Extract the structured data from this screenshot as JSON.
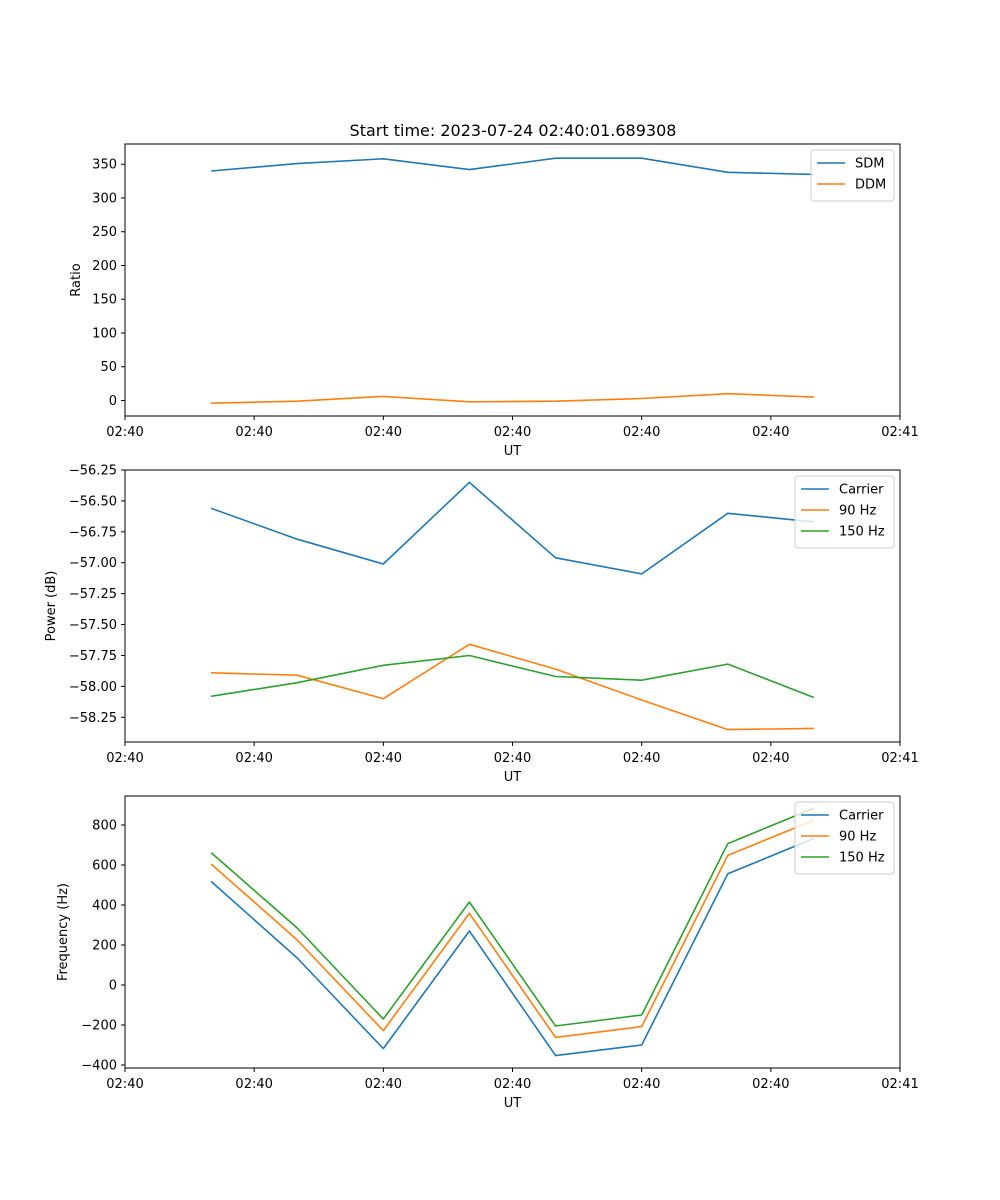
{
  "figure": {
    "title": "Start time: 2023-07-24 02:40:01.689308"
  },
  "chart_data": [
    {
      "type": "line",
      "title": "Start time: 2023-07-24 02:40:01.689308",
      "xlabel": "UT",
      "ylabel": "Ratio",
      "x_index": [
        1,
        2,
        3,
        4,
        5,
        6,
        7,
        8
      ],
      "xlim": [
        0,
        9
      ],
      "x_ticks": [
        {
          "pos": 0,
          "label": "02:40"
        },
        {
          "pos": 1.5,
          "label": "02:40"
        },
        {
          "pos": 3,
          "label": "02:40"
        },
        {
          "pos": 4.5,
          "label": "02:40"
        },
        {
          "pos": 6,
          "label": "02:40"
        },
        {
          "pos": 7.5,
          "label": "02:40"
        },
        {
          "pos": 9,
          "label": "02:41"
        }
      ],
      "ylim": [
        -23,
        380
      ],
      "y_ticks": [
        0,
        50,
        100,
        150,
        200,
        250,
        300,
        350
      ],
      "y_tick_labels": [
        "0",
        "50",
        "100",
        "150",
        "200",
        "250",
        "300",
        "350"
      ],
      "legend_position": "top-right",
      "series": [
        {
          "name": "SDM",
          "color": "#1f77b4",
          "values": [
            340,
            351,
            358,
            342,
            359,
            359,
            338,
            335
          ]
        },
        {
          "name": "DDM",
          "color": "#ff7f0e",
          "values": [
            -4,
            -1,
            6,
            -2,
            -1,
            3,
            10,
            5
          ]
        }
      ]
    },
    {
      "type": "line",
      "title": "",
      "xlabel": "UT",
      "ylabel": "Power (dB)",
      "x_index": [
        1,
        2,
        3,
        4,
        5,
        6,
        7,
        8
      ],
      "xlim": [
        0,
        9
      ],
      "x_ticks": [
        {
          "pos": 0,
          "label": "02:40"
        },
        {
          "pos": 1.5,
          "label": "02:40"
        },
        {
          "pos": 3,
          "label": "02:40"
        },
        {
          "pos": 4.5,
          "label": "02:40"
        },
        {
          "pos": 6,
          "label": "02:40"
        },
        {
          "pos": 7.5,
          "label": "02:40"
        },
        {
          "pos": 9,
          "label": "02:41"
        }
      ],
      "ylim": [
        -58.45,
        -56.25
      ],
      "y_ticks": [
        -58.25,
        -58.0,
        -57.75,
        -57.5,
        -57.25,
        -57.0,
        -56.75,
        -56.5,
        -56.25
      ],
      "y_tick_labels": [
        "−58.25",
        "−58.00",
        "−57.75",
        "−57.50",
        "−57.25",
        "−57.00",
        "−56.75",
        "−56.50",
        "−56.25"
      ],
      "legend_position": "top-right",
      "series": [
        {
          "name": "Carrier",
          "color": "#1f77b4",
          "values": [
            -56.56,
            -56.81,
            -57.01,
            -56.35,
            -56.96,
            -57.09,
            -56.6,
            -56.67
          ]
        },
        {
          "name": "90 Hz",
          "color": "#ff7f0e",
          "values": [
            -57.89,
            -57.91,
            -58.1,
            -57.66,
            -57.86,
            -58.11,
            -58.35,
            -58.34
          ]
        },
        {
          "name": "150 Hz",
          "color": "#2ca02c",
          "values": [
            -58.08,
            -57.97,
            -57.83,
            -57.75,
            -57.92,
            -57.95,
            -57.82,
            -58.09
          ]
        }
      ]
    },
    {
      "type": "line",
      "title": "",
      "xlabel": "UT",
      "ylabel": "Frequency (Hz)",
      "x_index": [
        1,
        2,
        3,
        4,
        5,
        6,
        7,
        8
      ],
      "xlim": [
        0,
        9
      ],
      "x_ticks": [
        {
          "pos": 0,
          "label": "02:40"
        },
        {
          "pos": 1.5,
          "label": "02:40"
        },
        {
          "pos": 3,
          "label": "02:40"
        },
        {
          "pos": 4.5,
          "label": "02:40"
        },
        {
          "pos": 6,
          "label": "02:40"
        },
        {
          "pos": 7.5,
          "label": "02:40"
        },
        {
          "pos": 9,
          "label": "02:41"
        }
      ],
      "ylim": [
        -415,
        945
      ],
      "y_ticks": [
        -400,
        -200,
        0,
        200,
        400,
        600,
        800
      ],
      "y_tick_labels": [
        "−400",
        "−200",
        "0",
        "200",
        "400",
        "600",
        "800"
      ],
      "legend_position": "top-right",
      "series": [
        {
          "name": "Carrier",
          "color": "#1f77b4",
          "values": [
            518,
            135,
            -318,
            270,
            -353,
            -300,
            556,
            733
          ]
        },
        {
          "name": "90 Hz",
          "color": "#ff7f0e",
          "values": [
            605,
            225,
            -228,
            358,
            -262,
            -208,
            648,
            824
          ]
        },
        {
          "name": "150 Hz",
          "color": "#2ca02c",
          "values": [
            662,
            285,
            -170,
            415,
            -205,
            -150,
            707,
            884
          ]
        }
      ]
    }
  ]
}
